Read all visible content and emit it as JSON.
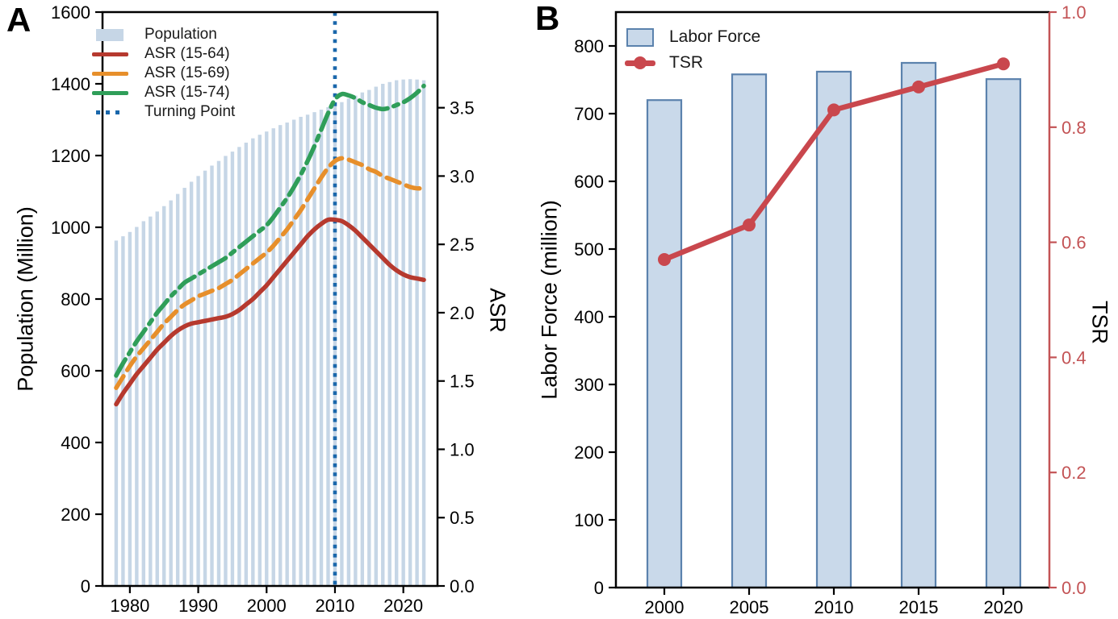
{
  "panels": {
    "a": {
      "label": "A",
      "ylabel_left": "Population (Million)",
      "ylabel_right": "ASR"
    },
    "b": {
      "label": "B",
      "ylabel_left": "Labor Force (million)",
      "ylabel_right": "TSR"
    }
  },
  "legend_a": {
    "population": "Population",
    "asr64": "ASR (15-64)",
    "asr69": "ASR (15-69)",
    "asr74": "ASR (15-74)",
    "turning": "Turning Point"
  },
  "legend_b": {
    "labor": "Labor Force",
    "tsr": "TSR"
  },
  "colors": {
    "bar_a_fill": "#c6d6e6",
    "bar_b_fill": "#c9d9ea",
    "bar_b_edge": "#5b82ad",
    "asr64_red": "#b6392e",
    "asr69_orange": "#e78f2b",
    "asr74_green": "#2f9e59",
    "turning_blue": "#1a67ab",
    "tsr_red": "#c9474d",
    "axis_b_right_red": "#c35355",
    "axis_black": "#000000"
  },
  "chart_data": [
    {
      "type": "bar+line",
      "panel": "A",
      "years": [
        1978,
        1979,
        1980,
        1981,
        1982,
        1983,
        1984,
        1985,
        1986,
        1987,
        1988,
        1989,
        1990,
        1991,
        1992,
        1993,
        1994,
        1995,
        1996,
        1997,
        1998,
        1999,
        2000,
        2001,
        2002,
        2003,
        2004,
        2005,
        2006,
        2007,
        2008,
        2009,
        2010,
        2011,
        2012,
        2013,
        2014,
        2015,
        2016,
        2017,
        2018,
        2019,
        2020,
        2021,
        2022,
        2023
      ],
      "bars": {
        "name": "Population",
        "values": [
          963,
          975,
          987,
          1001,
          1017,
          1030,
          1044,
          1059,
          1075,
          1093,
          1110,
          1127,
          1143,
          1158,
          1172,
          1185,
          1199,
          1211,
          1224,
          1236,
          1248,
          1258,
          1267,
          1276,
          1285,
          1292,
          1300,
          1308,
          1314,
          1321,
          1328,
          1335,
          1341,
          1349,
          1359,
          1367,
          1376,
          1383,
          1392,
          1400,
          1405,
          1410,
          1412,
          1413,
          1412,
          1410
        ]
      },
      "series": [
        {
          "name": "ASR (15-64)",
          "style": "solid",
          "color_key": "asr64_red",
          "values": [
            1.33,
            1.41,
            1.48,
            1.55,
            1.61,
            1.67,
            1.73,
            1.78,
            1.83,
            1.87,
            1.9,
            1.92,
            1.93,
            1.94,
            1.95,
            1.96,
            1.97,
            1.99,
            2.02,
            2.06,
            2.1,
            2.15,
            2.2,
            2.26,
            2.32,
            2.38,
            2.44,
            2.5,
            2.56,
            2.61,
            2.65,
            2.68,
            2.68,
            2.67,
            2.64,
            2.6,
            2.55,
            2.5,
            2.45,
            2.4,
            2.35,
            2.31,
            2.28,
            2.26,
            2.25,
            2.24
          ]
        },
        {
          "name": "ASR (15-69)",
          "style": "dashed",
          "color_key": "asr69_orange",
          "values": [
            1.45,
            1.53,
            1.61,
            1.68,
            1.74,
            1.8,
            1.86,
            1.92,
            1.97,
            2.02,
            2.06,
            2.09,
            2.12,
            2.14,
            2.16,
            2.18,
            2.21,
            2.24,
            2.28,
            2.32,
            2.36,
            2.4,
            2.44,
            2.49,
            2.55,
            2.61,
            2.68,
            2.75,
            2.83,
            2.91,
            2.99,
            3.06,
            3.11,
            3.13,
            3.12,
            3.1,
            3.08,
            3.05,
            3.03,
            3.0,
            2.98,
            2.96,
            2.94,
            2.92,
            2.91,
            2.91
          ]
        },
        {
          "name": "ASR (15-74)",
          "style": "dashdot",
          "color_key": "asr74_green",
          "values": [
            1.54,
            1.63,
            1.71,
            1.79,
            1.86,
            1.93,
            2.0,
            2.06,
            2.12,
            2.17,
            2.22,
            2.25,
            2.28,
            2.31,
            2.34,
            2.37,
            2.4,
            2.44,
            2.48,
            2.52,
            2.56,
            2.6,
            2.64,
            2.7,
            2.77,
            2.84,
            2.92,
            3.01,
            3.11,
            3.22,
            3.34,
            3.46,
            3.56,
            3.6,
            3.59,
            3.57,
            3.54,
            3.52,
            3.5,
            3.49,
            3.5,
            3.52,
            3.54,
            3.57,
            3.61,
            3.66
          ]
        }
      ],
      "vline": {
        "name": "Turning Point",
        "x": 2010
      },
      "left_axis": {
        "label": "Population (Million)",
        "lim": [
          0,
          1600
        ],
        "ticks": [
          0,
          200,
          400,
          600,
          800,
          1000,
          1200,
          1400,
          1600
        ]
      },
      "right_axis": {
        "label": "ASR",
        "lim": [
          0,
          4.2
        ],
        "ticks": [
          0,
          0.5,
          1,
          1.5,
          2,
          2.5,
          3,
          3.5
        ]
      },
      "x_axis": {
        "ticks": [
          1980,
          1990,
          2000,
          2010,
          2020
        ],
        "lim": [
          1976,
          2025
        ]
      }
    },
    {
      "type": "bar+line",
      "panel": "B",
      "categories": [
        "2000",
        "2005",
        "2010",
        "2015",
        "2020"
      ],
      "bars": {
        "name": "Labor Force",
        "values": [
          720,
          758,
          762,
          775,
          751
        ]
      },
      "line": {
        "name": "TSR",
        "values": [
          0.57,
          0.63,
          0.83,
          0.87,
          0.91
        ]
      },
      "left_axis": {
        "label": "Labor Force (million)",
        "lim": [
          0,
          850
        ],
        "ticks": [
          0,
          100,
          200,
          300,
          400,
          500,
          600,
          700,
          800
        ]
      },
      "right_axis": {
        "label": "TSR",
        "lim": [
          0,
          1
        ],
        "ticks": [
          0,
          0.2,
          0.4,
          0.6,
          0.8,
          1
        ]
      }
    }
  ]
}
